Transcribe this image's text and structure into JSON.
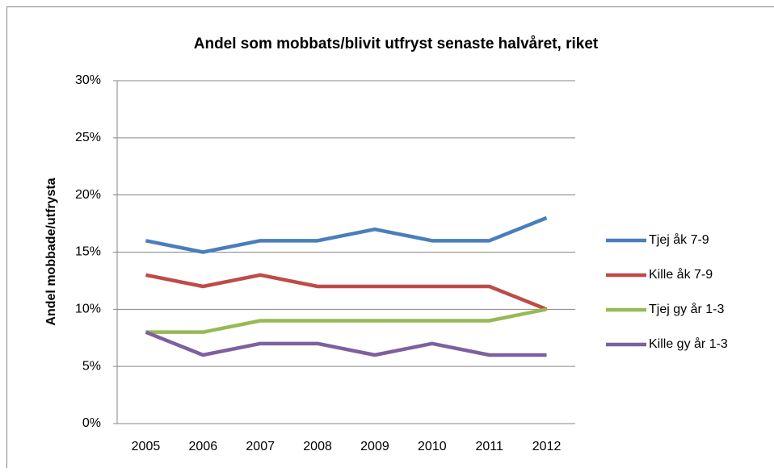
{
  "chart_data": {
    "type": "line",
    "title": "Andel som mobbats/blivit utfryst senaste halvåret, riket",
    "y_label": "Andel mobbade/utfrysta",
    "categories": [
      "2005",
      "2006",
      "2007",
      "2008",
      "2009",
      "2010",
      "2011",
      "2012"
    ],
    "series": [
      {
        "name": "Tjej åk 7-9",
        "color": "#4a7ebb",
        "values": [
          16,
          15,
          16,
          16,
          17,
          16,
          16,
          18
        ]
      },
      {
        "name": "Kille åk 7-9",
        "color": "#be4b48",
        "values": [
          13,
          12,
          13,
          12,
          12,
          12,
          12,
          10
        ]
      },
      {
        "name": "Tjej gy år 1-3",
        "color": "#98b954",
        "values": [
          8,
          8,
          9,
          9,
          9,
          9,
          9,
          10
        ]
      },
      {
        "name": "Kille gy år 1-3",
        "color": "#7d60a0",
        "values": [
          8,
          6,
          7,
          7,
          6,
          7,
          6,
          6
        ]
      }
    ],
    "ylim": [
      0,
      30
    ],
    "yticks": [
      {
        "value": 0,
        "label": "0%"
      },
      {
        "value": 5,
        "label": "5%"
      },
      {
        "value": 10,
        "label": "10%"
      },
      {
        "value": 15,
        "label": "15%"
      },
      {
        "value": 20,
        "label": "20%"
      },
      {
        "value": 25,
        "label": "25%"
      },
      {
        "value": 30,
        "label": "30%"
      }
    ],
    "grid": true,
    "legend": "right"
  }
}
